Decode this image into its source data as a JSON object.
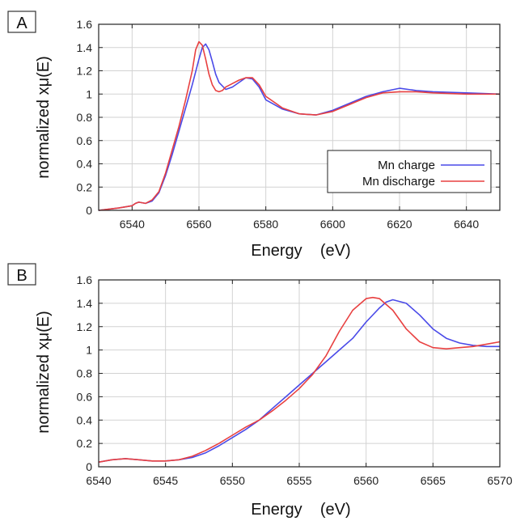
{
  "chart_data": [
    {
      "type": "line",
      "panel_label": "A",
      "xlabel": "Energy    (eV)",
      "ylabel": "normalized xμ(E)",
      "xlim": [
        6530,
        6650
      ],
      "ylim": [
        0,
        1.6
      ],
      "xticks": [
        6540,
        6560,
        6580,
        6600,
        6620,
        6640
      ],
      "yticks": [
        0,
        0.2,
        0.4,
        0.6,
        0.8,
        1,
        1.2,
        1.4,
        1.6
      ],
      "xtick_labels": [
        "6540",
        "6560",
        "6580",
        "6600",
        "6620",
        "6640"
      ],
      "ytick_labels": [
        "0",
        "0.2",
        "0.4",
        "0.6",
        "0.8",
        "1",
        "1.2",
        "1.4",
        "1.6"
      ],
      "grid": true,
      "legend_position": "bottom-right",
      "series": [
        {
          "name": "Mn charge",
          "color": "#4a4ae8",
          "x": [
            6530,
            6536,
            6540,
            6541,
            6542,
            6544,
            6546,
            6548,
            6550,
            6552,
            6554,
            6556,
            6558,
            6560,
            6561,
            6562,
            6563,
            6564,
            6565,
            6566,
            6568,
            6570,
            6572,
            6574,
            6576,
            6578,
            6580,
            6585,
            6590,
            6595,
            6600,
            6605,
            6610,
            6615,
            6620,
            6625,
            6630,
            6640,
            6650
          ],
          "y": [
            0,
            0.02,
            0.04,
            0.06,
            0.07,
            0.06,
            0.08,
            0.15,
            0.3,
            0.48,
            0.68,
            0.88,
            1.08,
            1.3,
            1.4,
            1.43,
            1.38,
            1.28,
            1.17,
            1.1,
            1.04,
            1.06,
            1.1,
            1.14,
            1.13,
            1.06,
            0.95,
            0.87,
            0.83,
            0.82,
            0.86,
            0.92,
            0.98,
            1.02,
            1.05,
            1.03,
            1.02,
            1.01,
            1.0
          ]
        },
        {
          "name": "Mn discharge",
          "color": "#e84040",
          "x": [
            6530,
            6536,
            6540,
            6541,
            6542,
            6544,
            6546,
            6548,
            6550,
            6552,
            6554,
            6556,
            6558,
            6559,
            6560,
            6561,
            6562,
            6563,
            6564,
            6565,
            6566,
            6567,
            6568,
            6570,
            6572,
            6574,
            6576,
            6578,
            6580,
            6585,
            6590,
            6595,
            6600,
            6605,
            6610,
            6615,
            6620,
            6625,
            6630,
            6640,
            6650
          ],
          "y": [
            0,
            0.02,
            0.04,
            0.06,
            0.07,
            0.06,
            0.09,
            0.16,
            0.32,
            0.52,
            0.72,
            0.95,
            1.2,
            1.38,
            1.45,
            1.42,
            1.3,
            1.17,
            1.08,
            1.03,
            1.02,
            1.03,
            1.06,
            1.09,
            1.12,
            1.14,
            1.14,
            1.08,
            0.98,
            0.88,
            0.83,
            0.82,
            0.85,
            0.91,
            0.97,
            1.01,
            1.02,
            1.02,
            1.01,
            1.0,
            1.0
          ]
        }
      ]
    },
    {
      "type": "line",
      "panel_label": "B",
      "xlabel": "Energy    (eV)",
      "ylabel": "normalized xμ(E)",
      "xlim": [
        6540,
        6570
      ],
      "ylim": [
        0,
        1.6
      ],
      "xticks": [
        6540,
        6545,
        6550,
        6555,
        6560,
        6565,
        6570
      ],
      "yticks": [
        0,
        0.2,
        0.4,
        0.6,
        0.8,
        1,
        1.2,
        1.4,
        1.6
      ],
      "xtick_labels": [
        "6540",
        "6545",
        "6550",
        "6555",
        "6560",
        "6565",
        "6570"
      ],
      "ytick_labels": [
        "0",
        "0.2",
        "0.4",
        "0.6",
        "0.8",
        "1",
        "1.2",
        "1.4",
        "1.6"
      ],
      "grid": true,
      "legend_position": "none",
      "series": [
        {
          "name": "",
          "color": "#4a4ae8",
          "x": [
            6540,
            6541,
            6542,
            6543,
            6544,
            6545,
            6546,
            6547,
            6548,
            6549,
            6550,
            6551,
            6552,
            6553,
            6554,
            6555,
            6556,
            6557,
            6558,
            6559,
            6560,
            6561,
            6561.5,
            6562,
            6563,
            6564,
            6565,
            6566,
            6567,
            6568,
            6569,
            6570
          ],
          "y": [
            0.04,
            0.06,
            0.07,
            0.06,
            0.05,
            0.05,
            0.06,
            0.08,
            0.12,
            0.18,
            0.25,
            0.32,
            0.4,
            0.5,
            0.6,
            0.7,
            0.8,
            0.9,
            1.0,
            1.1,
            1.24,
            1.36,
            1.41,
            1.43,
            1.4,
            1.3,
            1.18,
            1.1,
            1.06,
            1.04,
            1.03,
            1.03
          ]
        },
        {
          "name": "",
          "color": "#e84040",
          "x": [
            6540,
            6541,
            6542,
            6543,
            6544,
            6545,
            6546,
            6547,
            6548,
            6549,
            6550,
            6551,
            6552,
            6553,
            6554,
            6555,
            6556,
            6557,
            6558,
            6559,
            6560,
            6560.5,
            6561,
            6562,
            6563,
            6564,
            6565,
            6566,
            6567,
            6568,
            6569,
            6570
          ],
          "y": [
            0.04,
            0.06,
            0.07,
            0.06,
            0.05,
            0.05,
            0.06,
            0.09,
            0.14,
            0.2,
            0.27,
            0.34,
            0.4,
            0.48,
            0.57,
            0.67,
            0.79,
            0.95,
            1.16,
            1.34,
            1.44,
            1.45,
            1.44,
            1.34,
            1.18,
            1.07,
            1.02,
            1.01,
            1.02,
            1.03,
            1.05,
            1.07
          ]
        }
      ]
    }
  ]
}
